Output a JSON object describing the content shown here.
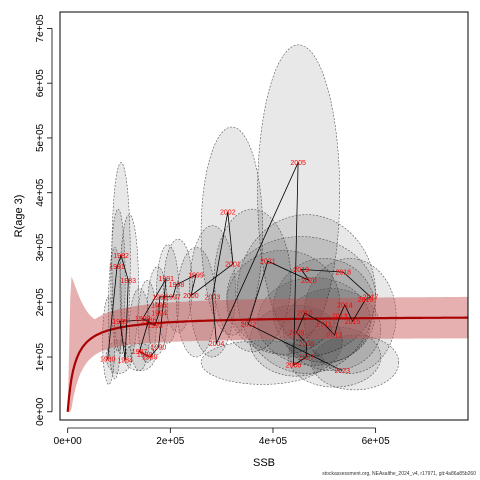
{
  "chart_data": {
    "type": "scatter",
    "title": "",
    "xlabel": "SSB",
    "ylabel": "R(age 3)",
    "xlim": [
      -15000,
      780000
    ],
    "ylim": [
      -15000,
      730000
    ],
    "x_ticks": [
      {
        "value": 0,
        "label": "0e+00"
      },
      {
        "value": 200000,
        "label": "2e+05"
      },
      {
        "value": 400000,
        "label": "4e+05"
      },
      {
        "value": 600000,
        "label": "6e+05"
      }
    ],
    "y_ticks": [
      {
        "value": 0,
        "label": "0e+00"
      },
      {
        "value": 100000,
        "label": "1e+05"
      },
      {
        "value": 200000,
        "label": "2e+05"
      },
      {
        "value": 300000,
        "label": "3e+05"
      },
      {
        "value": 400000,
        "label": "4e+05"
      },
      {
        "value": 500000,
        "label": "5e+05"
      },
      {
        "value": 600000,
        "label": "6e+05"
      },
      {
        "value": 700000,
        "label": "7e+05"
      }
    ],
    "grid": false,
    "legend": "none",
    "colors": {
      "points_path": "#000000",
      "year_labels": "#ff0000",
      "curve": "#aa0000",
      "band": "#c85050",
      "ellipse_fill": "#000000",
      "ellipse_stroke": "#555555"
    },
    "stock_recruitment_curve": {
      "model": "Beverton-Holt",
      "a": 175000,
      "b": 14000,
      "band_relative_halfwidth": 0.22,
      "band_peak_ssb": 6000,
      "band_peak_upper": 250000
    },
    "points": [
      {
        "year": "1980",
        "x": 78000,
        "y": 96000
      },
      {
        "year": "1981",
        "x": 96000,
        "y": 265000
      },
      {
        "year": "1982",
        "x": 104000,
        "y": 285000
      },
      {
        "year": "1983",
        "x": 118000,
        "y": 240000
      },
      {
        "year": "1984",
        "x": 112000,
        "y": 95000
      },
      {
        "year": "1985",
        "x": 102000,
        "y": 165000
      },
      {
        "year": "1986",
        "x": 158000,
        "y": 168000
      },
      {
        "year": "1987",
        "x": 140000,
        "y": 110000
      },
      {
        "year": "1988",
        "x": 150000,
        "y": 105000
      },
      {
        "year": "1989",
        "x": 160000,
        "y": 100000
      },
      {
        "year": "1990",
        "x": 177000,
        "y": 118000
      },
      {
        "year": "1991",
        "x": 192000,
        "y": 243000
      },
      {
        "year": "1992",
        "x": 146000,
        "y": 170000
      },
      {
        "year": "1993",
        "x": 170000,
        "y": 158000
      },
      {
        "year": "1994",
        "x": 178000,
        "y": 180000
      },
      {
        "year": "1995",
        "x": 178000,
        "y": 195000
      },
      {
        "year": "1996",
        "x": 180000,
        "y": 210000
      },
      {
        "year": "1997",
        "x": 205000,
        "y": 210000
      },
      {
        "year": "1998",
        "x": 212000,
        "y": 232000
      },
      {
        "year": "1999",
        "x": 250000,
        "y": 250000
      },
      {
        "year": "2000",
        "x": 240000,
        "y": 212000
      },
      {
        "year": "2001",
        "x": 322000,
        "y": 270000
      },
      {
        "year": "2002",
        "x": 312000,
        "y": 365000
      },
      {
        "year": "2003",
        "x": 282000,
        "y": 210000
      },
      {
        "year": "2004",
        "x": 290000,
        "y": 125000
      },
      {
        "year": "2005",
        "x": 449000,
        "y": 455000
      },
      {
        "year": "2006",
        "x": 440000,
        "y": 85000
      },
      {
        "year": "2007",
        "x": 465000,
        "y": 100000
      },
      {
        "year": "2008",
        "x": 465000,
        "y": 125000
      },
      {
        "year": "2009",
        "x": 446000,
        "y": 145000
      },
      {
        "year": "2010",
        "x": 462000,
        "y": 180000
      },
      {
        "year": "2011",
        "x": 500000,
        "y": 160000
      },
      {
        "year": "2012",
        "x": 520000,
        "y": 140000
      },
      {
        "year": "2013",
        "x": 530000,
        "y": 175000
      },
      {
        "year": "2014",
        "x": 540000,
        "y": 195000
      },
      {
        "year": "2015",
        "x": 555000,
        "y": 165000
      },
      {
        "year": "2016",
        "x": 580000,
        "y": 205000
      },
      {
        "year": "2017",
        "x": 590000,
        "y": 210000
      },
      {
        "year": "2018",
        "x": 537000,
        "y": 255000
      },
      {
        "year": "2019",
        "x": 455000,
        "y": 260000
      },
      {
        "year": "2020",
        "x": 470000,
        "y": 240000
      },
      {
        "year": "2021",
        "x": 390000,
        "y": 275000
      },
      {
        "year": "2022",
        "x": 352000,
        "y": 160000
      },
      {
        "year": "2023",
        "x": 535000,
        "y": 75000
      }
    ],
    "confidence_ellipses": [
      {
        "cx": 450000,
        "cy": 400000,
        "rx": 80000,
        "ry": 270000
      },
      {
        "cx": 320000,
        "cy": 330000,
        "rx": 60000,
        "ry": 190000
      },
      {
        "cx": 360000,
        "cy": 240000,
        "rx": 75000,
        "ry": 130000
      },
      {
        "cx": 465000,
        "cy": 215000,
        "rx": 135000,
        "ry": 145000
      },
      {
        "cx": 455000,
        "cy": 210000,
        "rx": 145000,
        "ry": 110000
      },
      {
        "cx": 420000,
        "cy": 200000,
        "rx": 110000,
        "ry": 95000
      },
      {
        "cx": 500000,
        "cy": 185000,
        "rx": 100000,
        "ry": 95000
      },
      {
        "cx": 550000,
        "cy": 175000,
        "rx": 90000,
        "ry": 105000
      },
      {
        "cx": 480000,
        "cy": 165000,
        "rx": 110000,
        "ry": 80000
      },
      {
        "cx": 515000,
        "cy": 150000,
        "rx": 95000,
        "ry": 75000
      },
      {
        "cx": 445000,
        "cy": 130000,
        "rx": 90000,
        "ry": 65000
      },
      {
        "cx": 520000,
        "cy": 100000,
        "rx": 90000,
        "ry": 55000
      },
      {
        "cx": 560000,
        "cy": 90000,
        "rx": 85000,
        "ry": 50000
      },
      {
        "cx": 380000,
        "cy": 90000,
        "rx": 120000,
        "ry": 40000
      },
      {
        "cx": 282000,
        "cy": 220000,
        "rx": 45000,
        "ry": 120000
      },
      {
        "cx": 250000,
        "cy": 200000,
        "rx": 38000,
        "ry": 100000
      },
      {
        "cx": 215000,
        "cy": 230000,
        "rx": 28000,
        "ry": 85000
      },
      {
        "cx": 195000,
        "cy": 215000,
        "rx": 22000,
        "ry": 90000
      },
      {
        "cx": 175000,
        "cy": 185000,
        "rx": 20000,
        "ry": 80000
      },
      {
        "cx": 155000,
        "cy": 165000,
        "rx": 18000,
        "ry": 75000
      },
      {
        "cx": 140000,
        "cy": 150000,
        "rx": 20000,
        "ry": 75000
      },
      {
        "cx": 120000,
        "cy": 230000,
        "rx": 18000,
        "ry": 130000
      },
      {
        "cx": 104000,
        "cy": 280000,
        "rx": 18000,
        "ry": 175000
      },
      {
        "cx": 98000,
        "cy": 240000,
        "rx": 14000,
        "ry": 130000
      },
      {
        "cx": 92000,
        "cy": 180000,
        "rx": 13000,
        "ry": 120000
      },
      {
        "cx": 80000,
        "cy": 130000,
        "rx": 12000,
        "ry": 80000
      },
      {
        "cx": 140000,
        "cy": 100000,
        "rx": 30000,
        "ry": 25000
      },
      {
        "cx": 100000,
        "cy": 100000,
        "rx": 25000,
        "ry": 30000
      }
    ]
  },
  "footer_text": "stockassessment.org, NEAsalthe_2024_v4, r17971, git:4a86a85b260"
}
